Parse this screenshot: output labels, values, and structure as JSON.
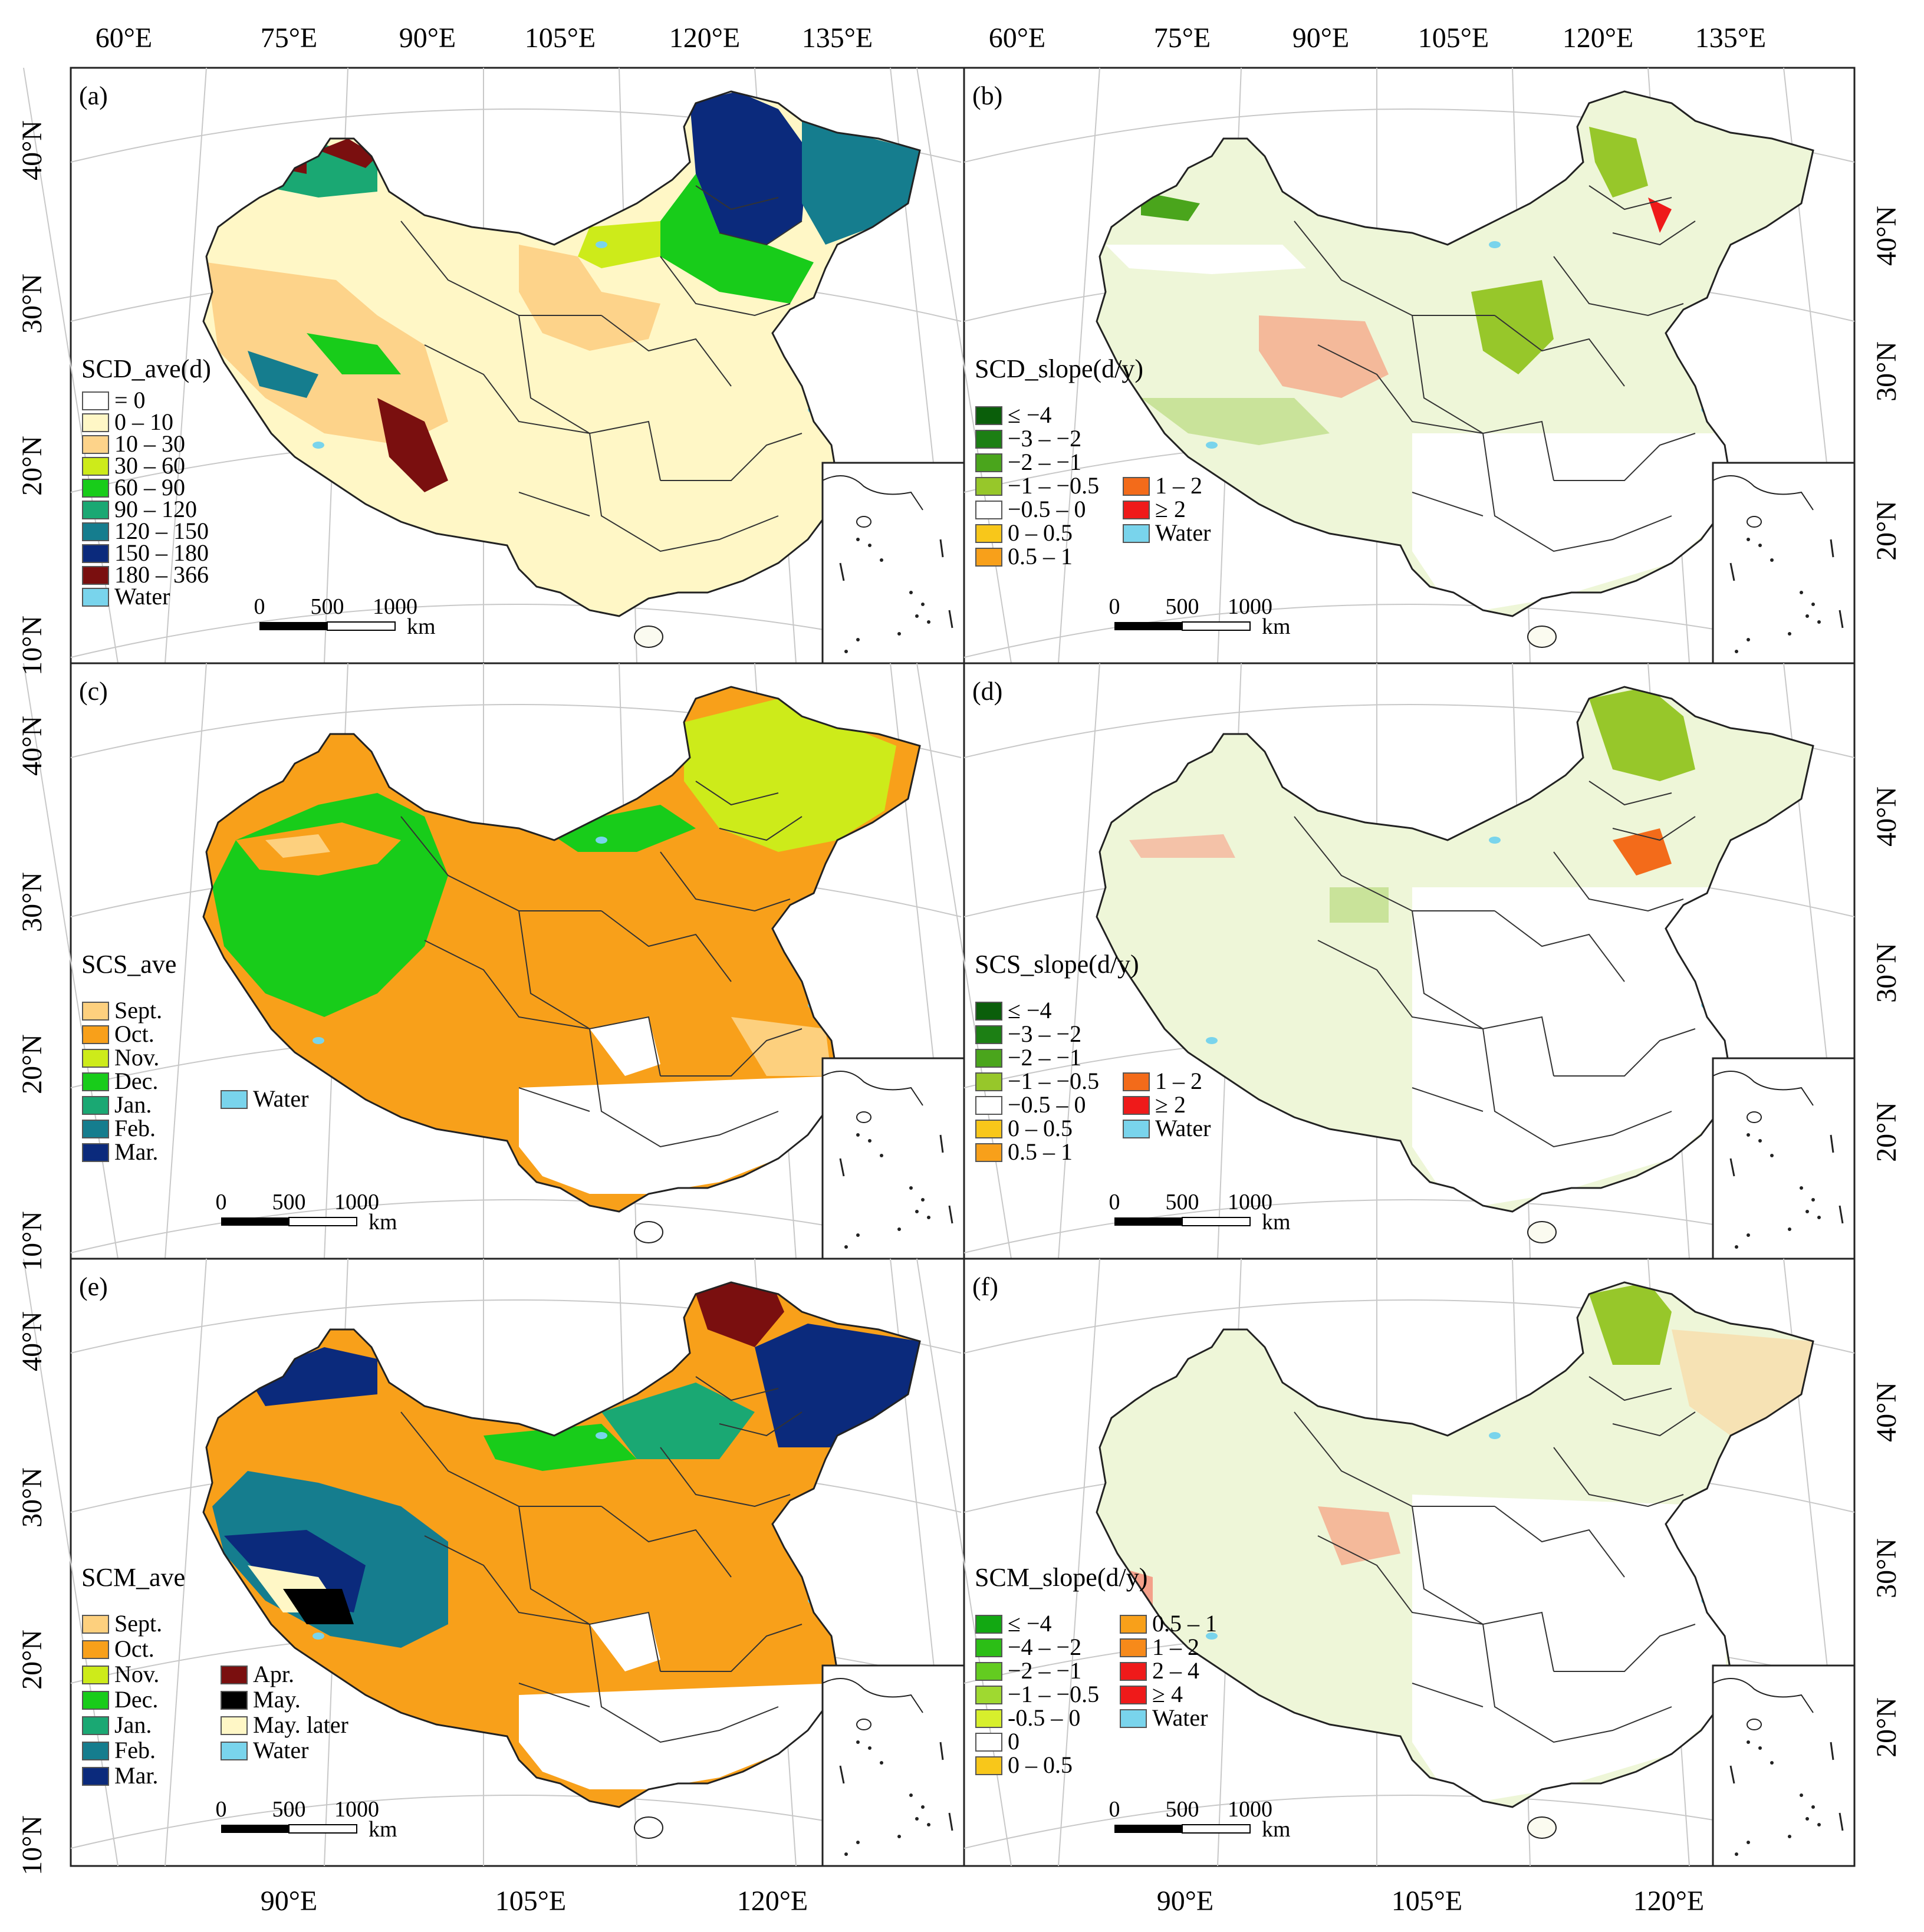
{
  "figure": {
    "top_axis_labels": [
      "60°E",
      "75°E",
      "90°E",
      "105°E",
      "120°E",
      "135°E"
    ],
    "bottom_axis_labels": [
      "90°E",
      "105°E",
      "120°E"
    ],
    "left_axis_labels": {
      "row1": [
        "40°N",
        "30°N",
        "20°N",
        "10°N"
      ],
      "row2": [
        "40°N",
        "30°N",
        "20°N",
        "10°N"
      ],
      "row3": [
        "40°N",
        "30°N",
        "20°N",
        "10°N"
      ]
    },
    "right_axis_labels": {
      "row1": [
        "40°N",
        "30°N",
        "20°N"
      ],
      "row2": [
        "40°N",
        "30°N",
        "20°N"
      ],
      "row3": [
        "40°N",
        "30°N",
        "20°N"
      ]
    },
    "scalebar": {
      "ticks": [
        "0",
        "500",
        "1000"
      ],
      "unit": "km"
    }
  },
  "colors": {
    "white": "#ffffff",
    "pale": "#fff7c6",
    "tan": "#fdd38a",
    "yellowgreen": "#cdeb1a",
    "green": "#18cc1a",
    "teal": "#1aa873",
    "tealblue": "#157d8e",
    "navy": "#0b2a7c",
    "maroon": "#7a0f0f",
    "water": "#79d4ec",
    "orange": "#f8a01a",
    "lightorange": "#fdd07e",
    "black": "#000000",
    "darkgreen1": "#0a5e0a",
    "darkgreen2": "#1c7f14",
    "midgreen": "#4aa51c",
    "lightgreen": "#97c72a",
    "brightgreen1": "#12a812",
    "brightgreen2": "#2cbe16",
    "brightgreen3": "#63cc20",
    "brightgreen4": "#9fd930",
    "limeyellow": "#d7ef2c",
    "ltyellow": "#f8c71a",
    "orange2": "#f78a1a",
    "orange3": "#f36b1a",
    "red": "#ef1a1a",
    "mapbase_slope": "#eef6d8"
  },
  "panels": [
    {
      "id": "a",
      "label": "(a)",
      "legend_title": "SCD_ave(d)",
      "legend_items": [
        {
          "label": "= 0",
          "color": "#ffffff"
        },
        {
          "label": "0 – 10",
          "color": "#fff7c6"
        },
        {
          "label": "10 – 30",
          "color": "#fdd38a"
        },
        {
          "label": "30 – 60",
          "color": "#cdeb1a"
        },
        {
          "label": "60 – 90",
          "color": "#18cc1a"
        },
        {
          "label": "90 – 120",
          "color": "#1aa873"
        },
        {
          "label": "120 – 150",
          "color": "#157d8e"
        },
        {
          "label": "150 – 180",
          "color": "#0b2a7c"
        },
        {
          "label": "180 – 366",
          "color": "#7a0f0f"
        },
        {
          "label": "Water",
          "color": "#79d4ec"
        }
      ],
      "legend_items_col2": []
    },
    {
      "id": "b",
      "label": "(b)",
      "legend_title": "SCD_slope(d/y)",
      "legend_items": [
        {
          "label": "≤ −4",
          "color": "#0a5e0a"
        },
        {
          "label": "−3 – −2",
          "color": "#1c7f14"
        },
        {
          "label": "−2 – −1",
          "color": "#4aa51c"
        },
        {
          "label": "−1 – −0.5",
          "color": "#97c72a"
        },
        {
          "label": "−0.5 – 0",
          "color": "#ffffff"
        },
        {
          "label": "0 – 0.5",
          "color": "#f8c71a"
        },
        {
          "label": "0.5 – 1",
          "color": "#f8a01a"
        }
      ],
      "legend_items_col2": [
        {
          "label": "1 – 2",
          "color": "#f36b1a"
        },
        {
          "label": "≥ 2",
          "color": "#ef1a1a"
        },
        {
          "label": "Water",
          "color": "#79d4ec"
        }
      ]
    },
    {
      "id": "c",
      "label": "(c)",
      "legend_title": "SCS_ave",
      "legend_items": [
        {
          "label": "Sept.",
          "color": "#fdd07e"
        },
        {
          "label": "Oct.",
          "color": "#f8a01a"
        },
        {
          "label": "Nov.",
          "color": "#cdeb1a"
        },
        {
          "label": "Dec.",
          "color": "#18cc1a"
        },
        {
          "label": "Jan.",
          "color": "#1aa873"
        },
        {
          "label": "Feb.",
          "color": "#157d8e"
        },
        {
          "label": "Mar.",
          "color": "#0b2a7c"
        }
      ],
      "legend_items_col2": [
        {
          "label": "Water",
          "color": "#79d4ec"
        }
      ]
    },
    {
      "id": "d",
      "label": "(d)",
      "legend_title": "SCS_slope(d/y)",
      "legend_items": [
        {
          "label": "≤ −4",
          "color": "#0a5e0a"
        },
        {
          "label": "−3 – −2",
          "color": "#1c7f14"
        },
        {
          "label": "−2 – −1",
          "color": "#4aa51c"
        },
        {
          "label": "−1 – −0.5",
          "color": "#97c72a"
        },
        {
          "label": "−0.5 – 0",
          "color": "#ffffff"
        },
        {
          "label": "0 – 0.5",
          "color": "#f8c71a"
        },
        {
          "label": "0.5 – 1",
          "color": "#f8a01a"
        }
      ],
      "legend_items_col2": [
        {
          "label": "1 – 2",
          "color": "#f36b1a"
        },
        {
          "label": "≥ 2",
          "color": "#ef1a1a"
        },
        {
          "label": "Water",
          "color": "#79d4ec"
        }
      ]
    },
    {
      "id": "e",
      "label": "(e)",
      "legend_title": "SCM_ave",
      "legend_items": [
        {
          "label": "Sept.",
          "color": "#fdd07e"
        },
        {
          "label": "Oct.",
          "color": "#f8a01a"
        },
        {
          "label": "Nov.",
          "color": "#cdeb1a"
        },
        {
          "label": "Dec.",
          "color": "#18cc1a"
        },
        {
          "label": "Jan.",
          "color": "#1aa873"
        },
        {
          "label": "Feb.",
          "color": "#157d8e"
        },
        {
          "label": "Mar.",
          "color": "#0b2a7c"
        }
      ],
      "legend_items_col2": [
        {
          "label": "Apr.",
          "color": "#7a0f0f"
        },
        {
          "label": "May.",
          "color": "#000000"
        },
        {
          "label": "May. later",
          "color": "#fff7c6"
        },
        {
          "label": "Water",
          "color": "#79d4ec"
        }
      ]
    },
    {
      "id": "f",
      "label": "(f)",
      "legend_title": "SCM_slope(d/y)",
      "legend_items": [
        {
          "label": "≤ −4",
          "color": "#12a812"
        },
        {
          "label": "−4 – −2",
          "color": "#2cbe16"
        },
        {
          "label": "−2 – −1",
          "color": "#63cc20"
        },
        {
          "label": "−1 – −0.5",
          "color": "#9fd930"
        },
        {
          "label": "-0.5 – 0",
          "color": "#d7ef2c"
        },
        {
          "label": "0",
          "color": "#ffffff"
        },
        {
          "label": "0 – 0.5",
          "color": "#f8c71a"
        }
      ],
      "legend_items_col2": [
        {
          "label": "0.5 – 1",
          "color": "#f8a01a"
        },
        {
          "label": "1 – 2",
          "color": "#f78a1a"
        },
        {
          "label": "2 – 4",
          "color": "#ef1a1a"
        },
        {
          "label": "≥ 4",
          "color": "#ef1a1a"
        },
        {
          "label": "Water",
          "color": "#79d4ec"
        }
      ]
    }
  ]
}
